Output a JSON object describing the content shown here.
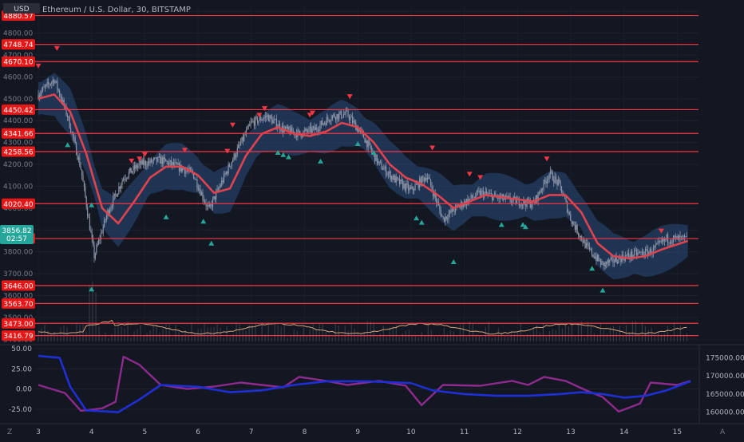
{
  "header": {
    "currency": "USD",
    "symbol_line": "Ethereum / U.S. Dollar, 30, BITSTAMP"
  },
  "price_scale": {
    "ticks": [
      "4900.00",
      "4800.00",
      "4700.00",
      "4600.00",
      "4500.00",
      "4400.00",
      "4300.00",
      "4200.00",
      "4100.00",
      "4000.00",
      "3900.00",
      "3800.00",
      "3700.00",
      "3600.00",
      "3500.00",
      "3400.00"
    ]
  },
  "last_price": {
    "value": "3856.82",
    "countdown": "02:57",
    "color": "#26a69a"
  },
  "colors": {
    "background": "#131722",
    "level_line": "#f23645",
    "ma_line": "#e0434e",
    "band_fill": "#2a4b7c",
    "candle": "#8a93a6",
    "volume_line": "#d9a27a",
    "osc_purple": "#8e2a8e",
    "osc_blue": "#1e2fd6",
    "buy_marker": "#26a69a",
    "sell_marker": "#f23645"
  },
  "date_axis": [
    "3",
    "4",
    "5",
    "6",
    "7",
    "8",
    "9",
    "10",
    "11",
    "12",
    "13",
    "14",
    "15"
  ],
  "oscillator": {
    "left_ticks": [
      "50.00",
      "25.00",
      "0.00",
      "-25.00"
    ],
    "right_ticks": [
      "175000.00",
      "170000.00",
      "165000.00",
      "160000.00"
    ]
  },
  "footer": {
    "left_icon": "Z",
    "right_icon": "A"
  },
  "chart_data": [
    {
      "type": "candlestick",
      "title": "Ethereum / U.S. Dollar, 30, BITSTAMP",
      "ylim": [
        3390,
        4930
      ],
      "x_range": [
        "3",
        "15"
      ],
      "horizontal_levels": [
        4880.57,
        4748.74,
        4670.1,
        4450.42,
        4341.66,
        4258.56,
        4020.4,
        3861.0,
        3646.0,
        3563.7,
        3473.0,
        3416.79
      ],
      "price_path": [
        {
          "day": 3.0,
          "price": 4520
        },
        {
          "day": 3.3,
          "price": 4590
        },
        {
          "day": 3.55,
          "price": 4420
        },
        {
          "day": 3.8,
          "price": 4180
        },
        {
          "day": 4.05,
          "price": 3780
        },
        {
          "day": 4.3,
          "price": 3980
        },
        {
          "day": 4.6,
          "price": 4140
        },
        {
          "day": 4.9,
          "price": 4200
        },
        {
          "day": 5.3,
          "price": 4220
        },
        {
          "day": 5.6,
          "price": 4190
        },
        {
          "day": 5.9,
          "price": 4160
        },
        {
          "day": 6.2,
          "price": 3990
        },
        {
          "day": 6.6,
          "price": 4200
        },
        {
          "day": 7.0,
          "price": 4390
        },
        {
          "day": 7.3,
          "price": 4420
        },
        {
          "day": 7.6,
          "price": 4360
        },
        {
          "day": 7.9,
          "price": 4340
        },
        {
          "day": 8.2,
          "price": 4360
        },
        {
          "day": 8.5,
          "price": 4420
        },
        {
          "day": 8.8,
          "price": 4430
        },
        {
          "day": 9.1,
          "price": 4330
        },
        {
          "day": 9.4,
          "price": 4200
        },
        {
          "day": 9.7,
          "price": 4130
        },
        {
          "day": 10.0,
          "price": 4080
        },
        {
          "day": 10.3,
          "price": 4150
        },
        {
          "day": 10.6,
          "price": 3950
        },
        {
          "day": 10.9,
          "price": 4010
        },
        {
          "day": 11.3,
          "price": 4070
        },
        {
          "day": 11.6,
          "price": 4050
        },
        {
          "day": 12.0,
          "price": 4030
        },
        {
          "day": 12.3,
          "price": 4020
        },
        {
          "day": 12.6,
          "price": 4160
        },
        {
          "day": 12.8,
          "price": 4100
        },
        {
          "day": 13.0,
          "price": 3950
        },
        {
          "day": 13.3,
          "price": 3820
        },
        {
          "day": 13.6,
          "price": 3740
        },
        {
          "day": 13.9,
          "price": 3770
        },
        {
          "day": 14.2,
          "price": 3790
        },
        {
          "day": 14.5,
          "price": 3800
        },
        {
          "day": 14.8,
          "price": 3860
        },
        {
          "day": 15.2,
          "price": 3857
        }
      ],
      "moving_average": [
        {
          "day": 3.0,
          "price": 4500
        },
        {
          "day": 3.3,
          "price": 4520
        },
        {
          "day": 3.6,
          "price": 4440
        },
        {
          "day": 3.9,
          "price": 4250
        },
        {
          "day": 4.2,
          "price": 4000
        },
        {
          "day": 4.5,
          "price": 3930
        },
        {
          "day": 4.8,
          "price": 4030
        },
        {
          "day": 5.1,
          "price": 4140
        },
        {
          "day": 5.4,
          "price": 4190
        },
        {
          "day": 5.7,
          "price": 4190
        },
        {
          "day": 6.0,
          "price": 4150
        },
        {
          "day": 6.3,
          "price": 4070
        },
        {
          "day": 6.6,
          "price": 4090
        },
        {
          "day": 6.9,
          "price": 4240
        },
        {
          "day": 7.2,
          "price": 4340
        },
        {
          "day": 7.5,
          "price": 4370
        },
        {
          "day": 7.8,
          "price": 4340
        },
        {
          "day": 8.1,
          "price": 4330
        },
        {
          "day": 8.4,
          "price": 4350
        },
        {
          "day": 8.7,
          "price": 4390
        },
        {
          "day": 9.0,
          "price": 4370
        },
        {
          "day": 9.3,
          "price": 4300
        },
        {
          "day": 9.6,
          "price": 4200
        },
        {
          "day": 9.9,
          "price": 4140
        },
        {
          "day": 10.2,
          "price": 4110
        },
        {
          "day": 10.5,
          "price": 4060
        },
        {
          "day": 10.8,
          "price": 4000
        },
        {
          "day": 11.1,
          "price": 4030
        },
        {
          "day": 11.4,
          "price": 4060
        },
        {
          "day": 11.7,
          "price": 4050
        },
        {
          "day": 12.0,
          "price": 4040
        },
        {
          "day": 12.3,
          "price": 4030
        },
        {
          "day": 12.6,
          "price": 4060
        },
        {
          "day": 12.9,
          "price": 4060
        },
        {
          "day": 13.2,
          "price": 3980
        },
        {
          "day": 13.5,
          "price": 3840
        },
        {
          "day": 13.8,
          "price": 3780
        },
        {
          "day": 14.1,
          "price": 3770
        },
        {
          "day": 14.4,
          "price": 3780
        },
        {
          "day": 14.7,
          "price": 3810
        },
        {
          "day": 15.2,
          "price": 3850
        }
      ],
      "band_width": 90,
      "sell_signals": [
        {
          "day": 3.0,
          "price": 4650
        },
        {
          "day": 3.35,
          "price": 4730
        },
        {
          "day": 4.75,
          "price": 4215
        },
        {
          "day": 4.9,
          "price": 4225
        },
        {
          "day": 5.0,
          "price": 4245
        },
        {
          "day": 5.75,
          "price": 4265
        },
        {
          "day": 6.55,
          "price": 4260
        },
        {
          "day": 6.65,
          "price": 4380
        },
        {
          "day": 7.15,
          "price": 4425
        },
        {
          "day": 7.25,
          "price": 4455
        },
        {
          "day": 8.1,
          "price": 4425
        },
        {
          "day": 8.15,
          "price": 4435
        },
        {
          "day": 8.85,
          "price": 4510
        },
        {
          "day": 10.4,
          "price": 4275
        },
        {
          "day": 11.1,
          "price": 4155
        },
        {
          "day": 11.3,
          "price": 4140
        },
        {
          "day": 12.55,
          "price": 4225
        },
        {
          "day": 14.7,
          "price": 3895
        }
      ],
      "buy_signals": [
        {
          "day": 3.55,
          "price": 4290
        },
        {
          "day": 4.0,
          "price": 4015
        },
        {
          "day": 4.0,
          "price": 3630
        },
        {
          "day": 5.4,
          "price": 3960
        },
        {
          "day": 6.1,
          "price": 3940
        },
        {
          "day": 6.25,
          "price": 3840
        },
        {
          "day": 7.5,
          "price": 4255
        },
        {
          "day": 7.6,
          "price": 4245
        },
        {
          "day": 7.7,
          "price": 4235
        },
        {
          "day": 8.3,
          "price": 4215
        },
        {
          "day": 9.0,
          "price": 4295
        },
        {
          "day": 9.3,
          "price": 4255
        },
        {
          "day": 10.1,
          "price": 3955
        },
        {
          "day": 10.2,
          "price": 3935
        },
        {
          "day": 10.8,
          "price": 3755
        },
        {
          "day": 11.7,
          "price": 3925
        },
        {
          "day": 12.1,
          "price": 3925
        },
        {
          "day": 12.15,
          "price": 3915
        },
        {
          "day": 13.4,
          "price": 3725
        },
        {
          "day": 13.6,
          "price": 3625
        }
      ]
    },
    {
      "type": "line",
      "ylim_left": [
        -40,
        50
      ],
      "ylim_right": [
        157500,
        177500
      ],
      "series": [
        {
          "axis": "left",
          "values": [
            {
              "day": 3.0,
              "y": 5
            },
            {
              "day": 3.5,
              "y": -5
            },
            {
              "day": 3.8,
              "y": -27
            },
            {
              "day": 4.2,
              "y": -24
            },
            {
              "day": 4.45,
              "y": -16
            },
            {
              "day": 4.6,
              "y": 40
            },
            {
              "day": 4.9,
              "y": 30
            },
            {
              "day": 5.3,
              "y": 5
            },
            {
              "day": 5.8,
              "y": 0
            },
            {
              "day": 6.3,
              "y": 3
            },
            {
              "day": 6.8,
              "y": 8
            },
            {
              "day": 7.2,
              "y": 5
            },
            {
              "day": 7.6,
              "y": 2
            },
            {
              "day": 7.9,
              "y": 15
            },
            {
              "day": 8.4,
              "y": 10
            },
            {
              "day": 8.8,
              "y": 5
            },
            {
              "day": 9.4,
              "y": 10
            },
            {
              "day": 9.9,
              "y": 4
            },
            {
              "day": 10.2,
              "y": -20
            },
            {
              "day": 10.6,
              "y": 5
            },
            {
              "day": 11.3,
              "y": 4
            },
            {
              "day": 11.9,
              "y": 10
            },
            {
              "day": 12.2,
              "y": 5
            },
            {
              "day": 12.5,
              "y": 15
            },
            {
              "day": 12.9,
              "y": 10
            },
            {
              "day": 13.3,
              "y": -2
            },
            {
              "day": 13.6,
              "y": -10
            },
            {
              "day": 13.9,
              "y": -28
            },
            {
              "day": 14.3,
              "y": -18
            },
            {
              "day": 14.5,
              "y": 8
            },
            {
              "day": 15.0,
              "y": 5
            },
            {
              "day": 15.25,
              "y": 10
            }
          ]
        },
        {
          "axis": "right",
          "values": [
            {
              "day": 3.0,
              "y": 175500
            },
            {
              "day": 3.4,
              "y": 175000
            },
            {
              "day": 3.6,
              "y": 167000
            },
            {
              "day": 3.9,
              "y": 160500
            },
            {
              "day": 4.5,
              "y": 160000
            },
            {
              "day": 4.9,
              "y": 163500
            },
            {
              "day": 5.3,
              "y": 167500
            },
            {
              "day": 6.0,
              "y": 167000
            },
            {
              "day": 6.6,
              "y": 165500
            },
            {
              "day": 7.2,
              "y": 166000
            },
            {
              "day": 7.8,
              "y": 167500
            },
            {
              "day": 8.4,
              "y": 168500
            },
            {
              "day": 9.2,
              "y": 168500
            },
            {
              "day": 10.0,
              "y": 168000
            },
            {
              "day": 10.4,
              "y": 166000
            },
            {
              "day": 11.0,
              "y": 165000
            },
            {
              "day": 11.6,
              "y": 164500
            },
            {
              "day": 12.2,
              "y": 164500
            },
            {
              "day": 12.8,
              "y": 165000
            },
            {
              "day": 13.2,
              "y": 165500
            },
            {
              "day": 13.6,
              "y": 165000
            },
            {
              "day": 14.0,
              "y": 164000
            },
            {
              "day": 14.4,
              "y": 164500
            },
            {
              "day": 14.8,
              "y": 166000
            },
            {
              "day": 15.25,
              "y": 168500
            }
          ]
        }
      ]
    }
  ]
}
